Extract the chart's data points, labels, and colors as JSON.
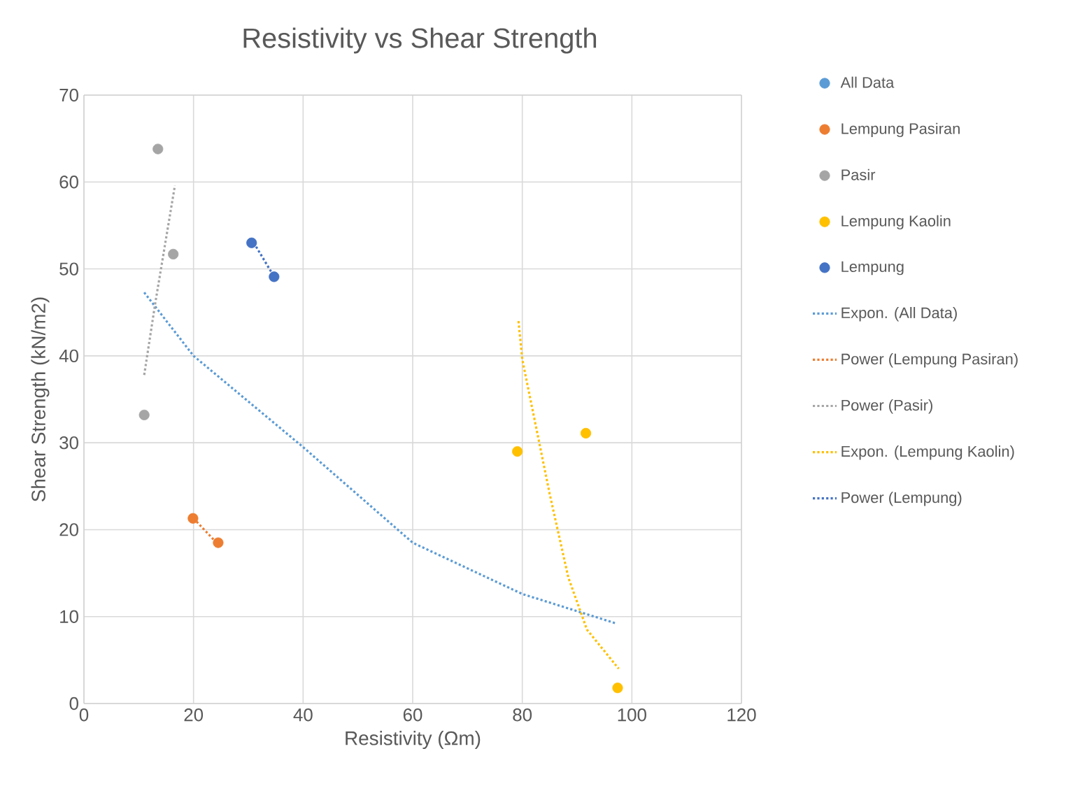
{
  "chart_data": {
    "type": "scatter",
    "title": "Resistivity vs Shear Strength",
    "xlabel": "Resistivity (Ωm)",
    "ylabel": "Shear Strength (kN/m2)",
    "xlim": [
      0,
      120
    ],
    "xticks": [
      0,
      20,
      40,
      60,
      80,
      100,
      120
    ],
    "ylim": [
      0,
      70
    ],
    "yticks": [
      0,
      10,
      20,
      30,
      40,
      50,
      60,
      70
    ],
    "grid": true,
    "legend": "right",
    "marker": "circle",
    "series": [
      {
        "name": "All Data",
        "color": "#5b9bd5"
      },
      {
        "name": "Lempung Pasiran",
        "color": "#ed7d31",
        "x": [
          19.9,
          24.5
        ],
        "values": [
          21.3,
          18.5
        ]
      },
      {
        "name": "Pasir",
        "color": "#a5a5a5",
        "x": [
          11,
          13.5,
          16.3
        ],
        "values": [
          33.2,
          63.8,
          51.7
        ]
      },
      {
        "name": "Lempung Kaolin",
        "color": "#ffc000",
        "x": [
          79.1,
          91.6,
          97.4
        ],
        "values": [
          29,
          31.1,
          1.8
        ]
      },
      {
        "name": "Lempung",
        "color": "#4472c4",
        "x": [
          30.6,
          34.7
        ],
        "values": [
          53,
          49.1
        ]
      },
      {
        "name": "Expon. (All Data)",
        "type": "line",
        "line_style": "dotted",
        "marker": "none",
        "color": "#5b9bd5",
        "x": [
          11,
          20,
          40,
          60,
          80,
          97.2
        ],
        "values": [
          47.3,
          40,
          29.5,
          18.5,
          12.6,
          9.2
        ]
      },
      {
        "name": "Power (Lempung Pasiran)",
        "type": "line",
        "line_style": "dotted",
        "marker": "none",
        "color": "#ed7d31",
        "x": [
          20,
          24.5
        ],
        "values": [
          21.3,
          18.3
        ]
      },
      {
        "name": "Power (Pasir)",
        "type": "line",
        "line_style": "dotted",
        "marker": "none",
        "color": "#a5a5a5",
        "x": [
          11,
          13,
          16.6
        ],
        "values": [
          37.8,
          46,
          59.6
        ]
      },
      {
        "name": "Expon. (Lempung Kaolin)",
        "type": "line",
        "line_style": "dotted",
        "marker": "none",
        "color": "#ffc000",
        "x": [
          79.3,
          80,
          85,
          88.4,
          91.8,
          97.6
        ],
        "values": [
          44,
          39.6,
          24.1,
          14.5,
          8.5,
          4
        ]
      },
      {
        "name": "Power (Lempung)",
        "type": "line",
        "line_style": "dotted",
        "marker": "none",
        "color": "#4472c4",
        "x": [
          31,
          35
        ],
        "values": [
          53,
          48.8
        ]
      }
    ]
  }
}
